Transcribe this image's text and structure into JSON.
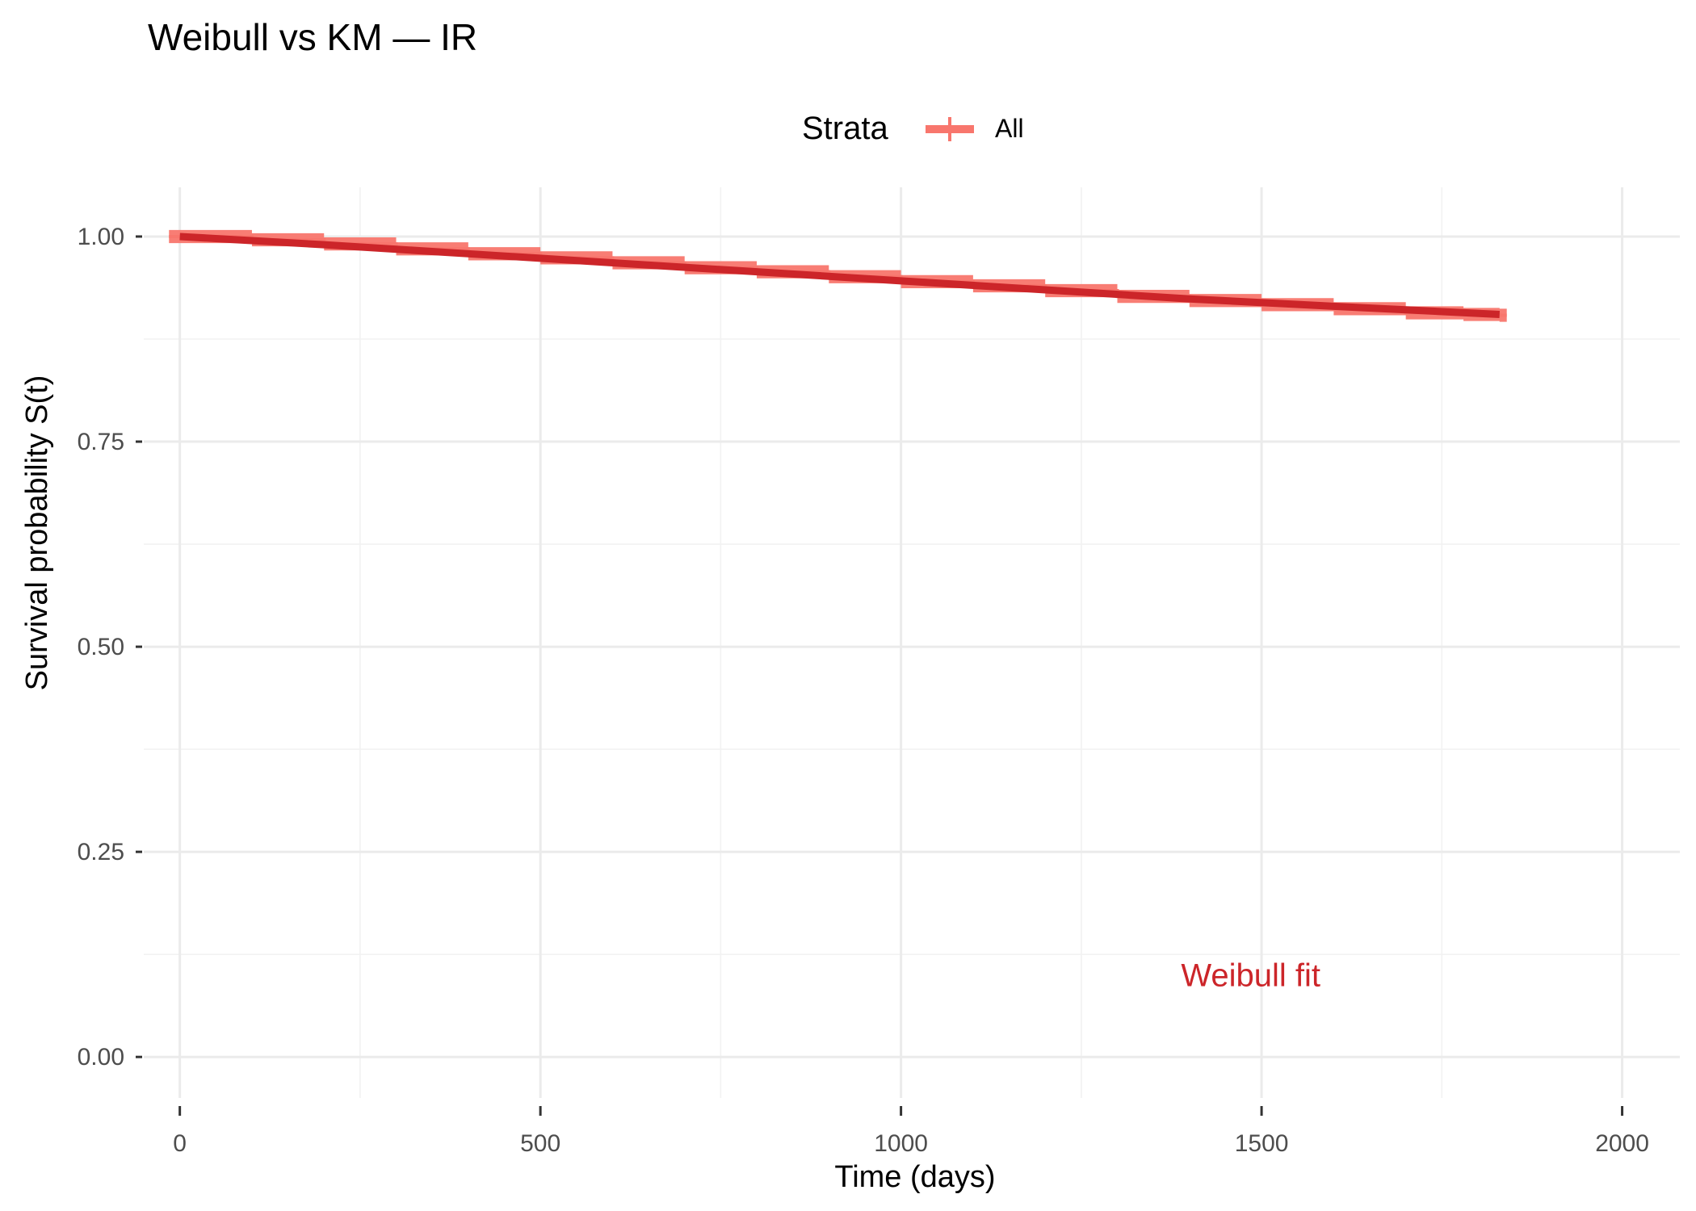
{
  "chart_data": {
    "type": "line",
    "title": "Weibull vs KM — IR",
    "xlabel": "Time (days)",
    "ylabel": "Survival probability S(t)",
    "xlim": [
      -50,
      2080
    ],
    "ylim": [
      -0.05,
      1.06
    ],
    "x_ticks": [
      0,
      500,
      1000,
      1500,
      2000
    ],
    "y_ticks": [
      0.0,
      0.25,
      0.5,
      0.75,
      1.0
    ],
    "x_tick_labels": [
      "0",
      "500",
      "1000",
      "1500",
      "2000"
    ],
    "y_tick_labels": [
      "0.00",
      "0.25",
      "0.50",
      "0.75",
      "1.00"
    ],
    "grid": true,
    "legend": {
      "title": "Strata",
      "position": "top",
      "entries": [
        {
          "label": "All",
          "color": "#f8766d"
        }
      ]
    },
    "series": [
      {
        "name": "All",
        "kind": "km-step",
        "color": "#f8766d",
        "x": [
          -15,
          0,
          100,
          200,
          300,
          400,
          500,
          600,
          700,
          800,
          900,
          1000,
          1100,
          1200,
          1300,
          1400,
          1500,
          1600,
          1700,
          1780,
          1830,
          1840
        ],
        "y": [
          1.0,
          1.0,
          0.996,
          0.991,
          0.985,
          0.979,
          0.974,
          0.968,
          0.962,
          0.957,
          0.951,
          0.945,
          0.94,
          0.934,
          0.927,
          0.922,
          0.917,
          0.912,
          0.907,
          0.905,
          0.904,
          0.904
        ],
        "ci_halfwidth": 0.008
      },
      {
        "kind": "fit-line",
        "color": "#cc2529",
        "x": [
          0,
          200,
          400,
          600,
          800,
          1000,
          1200,
          1400,
          1600,
          1830
        ],
        "y": [
          1.0,
          0.99,
          0.979,
          0.968,
          0.957,
          0.946,
          0.935,
          0.924,
          0.915,
          0.905
        ]
      }
    ],
    "annotations": [
      {
        "text": "Weibull fit",
        "x": 1485,
        "y": 0.1,
        "color": "#cc2529"
      }
    ]
  }
}
